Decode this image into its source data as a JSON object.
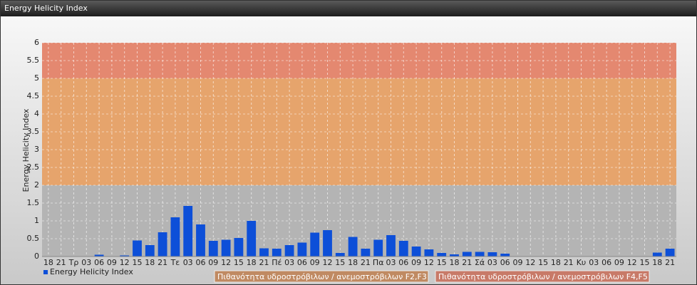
{
  "window_title": "Energy Helicity Index",
  "chart_data": {
    "type": "bar",
    "y_label": "Energy Helicity Index",
    "categories": [
      "18",
      "21",
      "Τρ",
      "03",
      "06",
      "09",
      "12",
      "15",
      "18",
      "21",
      "Τε",
      "03",
      "06",
      "09",
      "12",
      "15",
      "18",
      "21",
      "Πέ",
      "03",
      "06",
      "09",
      "12",
      "15",
      "18",
      "21",
      "Πα",
      "03",
      "06",
      "09",
      "12",
      "15",
      "18",
      "21",
      "Σά",
      "03",
      "06",
      "09",
      "12",
      "15",
      "18",
      "21",
      "Κυ",
      "03",
      "06",
      "09",
      "12",
      "15",
      "18",
      "21"
    ],
    "series": [
      {
        "name": "Energy Helicity Index",
        "color": "#0d4fd8",
        "values": [
          0.01,
          0.01,
          0.01,
          0.01,
          0.05,
          0.01,
          0.03,
          0.45,
          0.32,
          0.68,
          1.1,
          1.42,
          0.9,
          0.44,
          0.47,
          0.52,
          1.0,
          0.23,
          0.22,
          0.32,
          0.39,
          0.67,
          0.74,
          0.1,
          0.55,
          0.22,
          0.47,
          0.6,
          0.44,
          0.28,
          0.2,
          0.1,
          0.06,
          0.13,
          0.13,
          0.12,
          0.08,
          0.01,
          0.01,
          0.01,
          0.01,
          0.01,
          0.01,
          0.01,
          0.01,
          0.01,
          0.01,
          0.01,
          0.11,
          0.22
        ]
      }
    ],
    "bands": [
      {
        "from": 0,
        "to": 2,
        "color": "#b4b4b4"
      },
      {
        "from": 2,
        "to": 5,
        "color": "#e6a46c",
        "label": "Πιθανότητα υδροστρόβιλων / ανεμοστρόβιλων F2,F3",
        "label_color": "#c08a62"
      },
      {
        "from": 5,
        "to": 6,
        "color": "#e48870",
        "label": "Πιθανότητα υδροστρόβιλων / ανεμοστρόβιλων F4,F5",
        "label_color": "#c87a68"
      }
    ],
    "ylim": [
      0,
      6
    ],
    "yticks": [
      0,
      0.5,
      1,
      1.5,
      2,
      2.5,
      3,
      3.5,
      4,
      4.5,
      5,
      5.5,
      6
    ],
    "grid": true
  }
}
